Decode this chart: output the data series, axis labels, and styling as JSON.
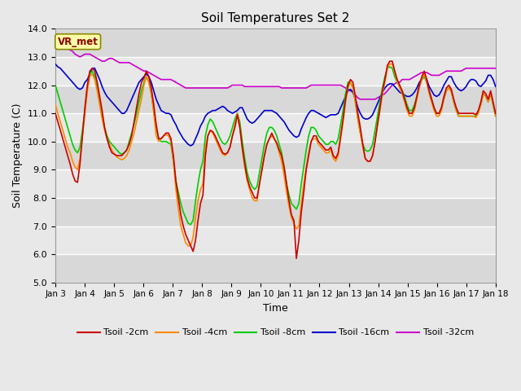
{
  "title": "Soil Temperatures Set 2",
  "xlabel": "Time",
  "ylabel": "Soil Temperature (C)",
  "ylim": [
    5.0,
    14.0
  ],
  "yticks": [
    5.0,
    6.0,
    7.0,
    8.0,
    9.0,
    10.0,
    11.0,
    12.0,
    13.0,
    14.0
  ],
  "xtick_labels": [
    "Jan 3",
    "Jan 4",
    "Jan 5",
    "Jan 6",
    "Jan 7",
    "Jan 8",
    "Jan 9",
    "Jan 10",
    "Jan 11",
    "Jan 12",
    "Jan 13",
    "Jan 14",
    "Jan 15",
    "Jan 16",
    "Jan 17",
    "Jan 18"
  ],
  "series_colors": {
    "Tsoil -2cm": "#cc0000",
    "Tsoil -4cm": "#ff8800",
    "Tsoil -8cm": "#00cc00",
    "Tsoil -16cm": "#0000cc",
    "Tsoil -32cm": "#cc00cc"
  },
  "lw": 1.2,
  "legend_label": "VR_met",
  "bg_color": "#e8e8e8",
  "plot_bg_light": "#f2f2f2",
  "plot_bg_dark": "#e0e0e0",
  "grid_color": "#ffffff",
  "tsoil_2cm": [
    11.0,
    10.7,
    10.4,
    10.1,
    9.8,
    9.5,
    9.2,
    8.85,
    8.6,
    8.55,
    9.2,
    10.2,
    11.2,
    12.0,
    12.5,
    12.6,
    12.5,
    12.1,
    11.6,
    11.1,
    10.5,
    10.1,
    9.8,
    9.6,
    9.55,
    9.5,
    9.5,
    9.5,
    9.6,
    9.7,
    9.9,
    10.2,
    10.7,
    11.2,
    11.7,
    12.1,
    12.25,
    12.5,
    12.3,
    11.9,
    11.3,
    10.6,
    10.1,
    10.1,
    10.2,
    10.3,
    10.3,
    10.1,
    9.5,
    8.6,
    8.0,
    7.4,
    7.0,
    6.7,
    6.5,
    6.3,
    6.1,
    6.5,
    7.2,
    7.8,
    8.1,
    9.5,
    10.2,
    10.4,
    10.35,
    10.2,
    10.0,
    9.8,
    9.6,
    9.55,
    9.6,
    9.8,
    10.2,
    10.5,
    10.95,
    10.5,
    9.8,
    9.2,
    8.7,
    8.4,
    8.2,
    8.0,
    8.0,
    8.5,
    9.0,
    9.5,
    9.9,
    10.1,
    10.3,
    10.1,
    9.95,
    9.7,
    9.5,
    9.1,
    8.5,
    7.9,
    7.4,
    7.2,
    5.85,
    6.5,
    7.5,
    8.2,
    9.0,
    9.5,
    10.0,
    10.2,
    10.2,
    10.0,
    9.9,
    9.8,
    9.7,
    9.7,
    9.8,
    9.5,
    9.4,
    9.6,
    10.2,
    10.8,
    11.5,
    12.0,
    12.2,
    12.1,
    11.6,
    11.0,
    10.5,
    9.9,
    9.4,
    9.3,
    9.3,
    9.5,
    10.0,
    10.6,
    11.2,
    11.8,
    12.2,
    12.7,
    12.85,
    12.85,
    12.5,
    12.2,
    12.0,
    11.8,
    11.5,
    11.2,
    11.0,
    11.0,
    11.2,
    11.6,
    12.0,
    12.3,
    12.5,
    12.2,
    11.8,
    11.5,
    11.2,
    11.0,
    11.0,
    11.2,
    11.6,
    11.9,
    12.0,
    11.85,
    11.5,
    11.2,
    11.0,
    11.0,
    11.0,
    11.0,
    11.0,
    11.0,
    11.0,
    10.95,
    11.1,
    11.4,
    11.8,
    11.7,
    11.5,
    11.8,
    11.4,
    11.0
  ],
  "tsoil_4cm": [
    11.3,
    11.0,
    10.7,
    10.4,
    10.1,
    9.8,
    9.6,
    9.3,
    9.1,
    9.0,
    9.4,
    10.2,
    11.0,
    11.8,
    12.3,
    12.4,
    12.2,
    11.8,
    11.3,
    10.8,
    10.4,
    10.1,
    9.9,
    9.7,
    9.55,
    9.45,
    9.4,
    9.35,
    9.4,
    9.5,
    9.7,
    10.0,
    10.3,
    10.7,
    11.1,
    11.5,
    12.0,
    12.3,
    12.1,
    11.7,
    11.0,
    10.2,
    10.0,
    10.1,
    10.2,
    10.25,
    10.2,
    10.0,
    9.3,
    8.3,
    7.6,
    7.0,
    6.7,
    6.4,
    6.3,
    6.3,
    6.6,
    7.3,
    7.9,
    8.3,
    8.5,
    9.8,
    10.2,
    10.4,
    10.3,
    10.1,
    9.9,
    9.7,
    9.55,
    9.5,
    9.6,
    9.8,
    10.2,
    10.6,
    11.0,
    10.5,
    9.7,
    9.1,
    8.6,
    8.3,
    8.0,
    7.9,
    7.9,
    8.5,
    9.0,
    9.5,
    9.9,
    10.1,
    10.2,
    10.1,
    9.9,
    9.6,
    9.3,
    8.8,
    8.2,
    7.7,
    7.3,
    7.1,
    6.9,
    7.0,
    7.8,
    8.5,
    9.1,
    9.6,
    10.0,
    10.1,
    10.1,
    9.9,
    9.8,
    9.7,
    9.6,
    9.6,
    9.7,
    9.4,
    9.3,
    9.5,
    10.1,
    10.7,
    11.4,
    11.9,
    12.1,
    11.9,
    11.4,
    10.8,
    10.3,
    9.8,
    9.4,
    9.3,
    9.3,
    9.5,
    10.0,
    10.6,
    11.1,
    11.7,
    12.1,
    12.6,
    12.75,
    12.75,
    12.45,
    12.15,
    11.9,
    11.7,
    11.4,
    11.1,
    10.9,
    10.9,
    11.1,
    11.5,
    11.9,
    12.2,
    12.4,
    12.1,
    11.7,
    11.4,
    11.1,
    10.9,
    10.9,
    11.1,
    11.5,
    11.8,
    11.9,
    11.75,
    11.4,
    11.1,
    10.9,
    10.9,
    10.9,
    10.9,
    10.9,
    10.9,
    10.9,
    10.85,
    11.0,
    11.3,
    11.7,
    11.6,
    11.4,
    11.7,
    11.3,
    10.9
  ],
  "tsoil_8cm": [
    12.0,
    11.7,
    11.4,
    11.1,
    10.8,
    10.5,
    10.2,
    9.9,
    9.7,
    9.6,
    9.8,
    10.4,
    11.1,
    11.9,
    12.4,
    12.5,
    12.3,
    11.9,
    11.4,
    10.9,
    10.5,
    10.2,
    10.0,
    9.9,
    9.8,
    9.7,
    9.6,
    9.55,
    9.6,
    9.7,
    10.0,
    10.3,
    10.6,
    11.0,
    11.4,
    11.8,
    12.1,
    12.3,
    12.1,
    11.7,
    11.1,
    10.5,
    10.1,
    10.0,
    10.0,
    10.0,
    9.95,
    9.9,
    9.3,
    8.6,
    8.2,
    7.8,
    7.5,
    7.3,
    7.1,
    7.05,
    7.2,
    7.9,
    8.5,
    9.0,
    9.3,
    10.2,
    10.6,
    10.8,
    10.7,
    10.5,
    10.3,
    10.1,
    9.95,
    9.9,
    10.0,
    10.2,
    10.5,
    10.8,
    11.0,
    10.7,
    10.0,
    9.4,
    8.9,
    8.6,
    8.4,
    8.3,
    8.4,
    8.9,
    9.4,
    9.9,
    10.3,
    10.5,
    10.5,
    10.4,
    10.2,
    9.9,
    9.6,
    9.1,
    8.5,
    8.1,
    7.8,
    7.7,
    7.6,
    7.8,
    8.5,
    9.1,
    9.7,
    10.2,
    10.5,
    10.5,
    10.4,
    10.2,
    10.1,
    10.0,
    9.9,
    9.9,
    10.0,
    10.0,
    9.9,
    10.1,
    10.6,
    11.1,
    11.7,
    12.1,
    12.1,
    11.9,
    11.4,
    10.8,
    10.3,
    9.9,
    9.7,
    9.65,
    9.7,
    9.9,
    10.4,
    10.9,
    11.4,
    11.9,
    12.3,
    12.6,
    12.65,
    12.6,
    12.3,
    12.1,
    11.95,
    11.8,
    11.6,
    11.3,
    11.1,
    11.1,
    11.3,
    11.6,
    12.0,
    12.2,
    12.3,
    12.1,
    11.8,
    11.5,
    11.2,
    11.0,
    11.0,
    11.2,
    11.5,
    11.8,
    11.9,
    11.8,
    11.4,
    11.1,
    10.9,
    10.9,
    10.9,
    10.9,
    10.9,
    10.9,
    10.9,
    10.9,
    11.1,
    11.3,
    11.7,
    11.6,
    11.4,
    11.7,
    11.3,
    10.9
  ],
  "tsoil_16cm": [
    12.75,
    12.65,
    12.6,
    12.5,
    12.4,
    12.3,
    12.2,
    12.1,
    12.0,
    11.9,
    11.85,
    11.9,
    12.1,
    12.2,
    12.4,
    12.6,
    12.6,
    12.4,
    12.2,
    11.95,
    11.75,
    11.6,
    11.5,
    11.4,
    11.3,
    11.2,
    11.1,
    11.0,
    11.0,
    11.1,
    11.3,
    11.5,
    11.7,
    11.9,
    12.1,
    12.2,
    12.3,
    12.4,
    12.3,
    12.1,
    11.8,
    11.5,
    11.3,
    11.1,
    11.05,
    11.0,
    11.0,
    10.95,
    10.75,
    10.6,
    10.4,
    10.25,
    10.1,
    10.0,
    9.9,
    9.85,
    9.9,
    10.1,
    10.3,
    10.55,
    10.7,
    10.9,
    11.0,
    11.05,
    11.1,
    11.1,
    11.15,
    11.2,
    11.25,
    11.2,
    11.1,
    11.05,
    11.0,
    11.05,
    11.1,
    11.2,
    11.2,
    11.0,
    10.8,
    10.7,
    10.65,
    10.7,
    10.8,
    10.9,
    11.0,
    11.1,
    11.1,
    11.1,
    11.1,
    11.05,
    11.0,
    10.9,
    10.8,
    10.7,
    10.55,
    10.4,
    10.3,
    10.2,
    10.15,
    10.2,
    10.45,
    10.65,
    10.85,
    11.0,
    11.1,
    11.1,
    11.05,
    11.0,
    10.95,
    10.9,
    10.85,
    10.9,
    10.95,
    10.95,
    10.95,
    11.0,
    11.2,
    11.4,
    11.6,
    11.8,
    11.85,
    11.75,
    11.5,
    11.2,
    11.0,
    10.85,
    10.8,
    10.8,
    10.85,
    10.95,
    11.15,
    11.35,
    11.55,
    11.75,
    11.9,
    12.0,
    12.05,
    12.05,
    11.95,
    11.85,
    11.75,
    11.7,
    11.65,
    11.6,
    11.6,
    11.65,
    11.75,
    11.9,
    12.1,
    12.2,
    12.3,
    12.2,
    11.95,
    11.8,
    11.65,
    11.6,
    11.65,
    11.8,
    12.0,
    12.15,
    12.3,
    12.3,
    12.1,
    11.95,
    11.85,
    11.8,
    11.85,
    11.95,
    12.1,
    12.2,
    12.2,
    12.15,
    12.0,
    11.95,
    12.05,
    12.15,
    12.35,
    12.35,
    12.2,
    11.95
  ],
  "tsoil_32cm": [
    13.55,
    13.5,
    13.45,
    13.4,
    13.35,
    13.3,
    13.25,
    13.2,
    13.1,
    13.05,
    13.0,
    13.05,
    13.1,
    13.1,
    13.1,
    13.05,
    13.0,
    12.95,
    12.9,
    12.85,
    12.85,
    12.9,
    12.95,
    12.95,
    12.9,
    12.85,
    12.8,
    12.8,
    12.8,
    12.8,
    12.8,
    12.75,
    12.7,
    12.65,
    12.6,
    12.55,
    12.5,
    12.5,
    12.45,
    12.4,
    12.35,
    12.3,
    12.25,
    12.2,
    12.2,
    12.2,
    12.2,
    12.2,
    12.15,
    12.1,
    12.05,
    12.0,
    11.95,
    11.9,
    11.9,
    11.9,
    11.9,
    11.9,
    11.9,
    11.9,
    11.9,
    11.9,
    11.9,
    11.9,
    11.9,
    11.9,
    11.9,
    11.9,
    11.9,
    11.9,
    11.9,
    11.95,
    12.0,
    12.0,
    12.0,
    12.0,
    12.0,
    11.95,
    11.95,
    11.95,
    11.95,
    11.95,
    11.95,
    11.95,
    11.95,
    11.95,
    11.95,
    11.95,
    11.95,
    11.95,
    11.95,
    11.95,
    11.9,
    11.9,
    11.9,
    11.9,
    11.9,
    11.9,
    11.9,
    11.9,
    11.9,
    11.9,
    11.9,
    11.95,
    12.0,
    12.0,
    12.0,
    12.0,
    12.0,
    12.0,
    12.0,
    12.0,
    12.0,
    12.0,
    12.0,
    12.0,
    12.0,
    11.95,
    11.9,
    11.85,
    11.8,
    11.75,
    11.65,
    11.55,
    11.5,
    11.5,
    11.5,
    11.5,
    11.5,
    11.5,
    11.5,
    11.55,
    11.6,
    11.65,
    11.7,
    11.8,
    11.9,
    12.0,
    12.05,
    12.1,
    12.1,
    12.2,
    12.2,
    12.2,
    12.2,
    12.25,
    12.3,
    12.35,
    12.4,
    12.45,
    12.45,
    12.45,
    12.4,
    12.35,
    12.35,
    12.35,
    12.35,
    12.4,
    12.45,
    12.5,
    12.5,
    12.5,
    12.5,
    12.5,
    12.5,
    12.5,
    12.55,
    12.6,
    12.6,
    12.6,
    12.6,
    12.6,
    12.6,
    12.6,
    12.6,
    12.6,
    12.6,
    12.6,
    12.6,
    12.6
  ]
}
